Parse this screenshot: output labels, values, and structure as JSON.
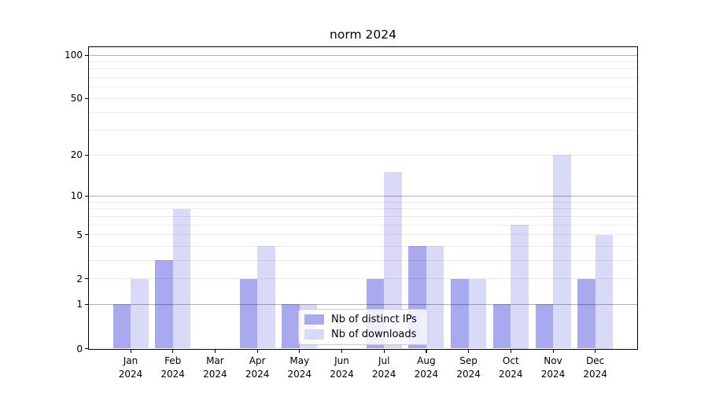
{
  "figure": {
    "title": "norm 2024"
  },
  "chart_data": {
    "type": "bar",
    "title": "norm 2024",
    "categories": [
      "Jan 2024",
      "Feb 2024",
      "Mar 2024",
      "Apr 2024",
      "May 2024",
      "Jun 2024",
      "Jul 2024",
      "Aug 2024",
      "Sep 2024",
      "Oct 2024",
      "Nov 2024",
      "Dec 2024"
    ],
    "series": [
      {
        "name": "Nb of distinct IPs",
        "color": "#a9a9ef",
        "values": [
          1,
          3,
          0,
          2,
          1,
          0,
          2,
          4,
          2,
          1,
          1,
          2
        ]
      },
      {
        "name": "Nb of downloads",
        "color": "#d9d9f8",
        "values": [
          2,
          8,
          0,
          4,
          1,
          0,
          15,
          4,
          2,
          6,
          20,
          5
        ]
      }
    ],
    "xlabel": "",
    "ylabel": "",
    "yscale": "log1p",
    "ylim": [
      0,
      113
    ],
    "y_tick_labels": [
      "0",
      "1",
      "2",
      "5",
      "10",
      "20",
      "50",
      "100"
    ],
    "gridlines": {
      "emphasis": [
        1,
        10,
        100
      ],
      "light": [
        2,
        3,
        4,
        5,
        6,
        7,
        8,
        9,
        20,
        30,
        40,
        50,
        60,
        70,
        80,
        90
      ]
    },
    "grid": true,
    "legend_position": "lower center"
  },
  "colors": {
    "grid_light": "rgba(0,0,0,0.08)",
    "grid_emphasis": "rgba(0,0,0,0.30)",
    "spine": "#000000",
    "legend_border": "#cccccc",
    "legend_background": "rgba(255,255,255,0.8)"
  }
}
